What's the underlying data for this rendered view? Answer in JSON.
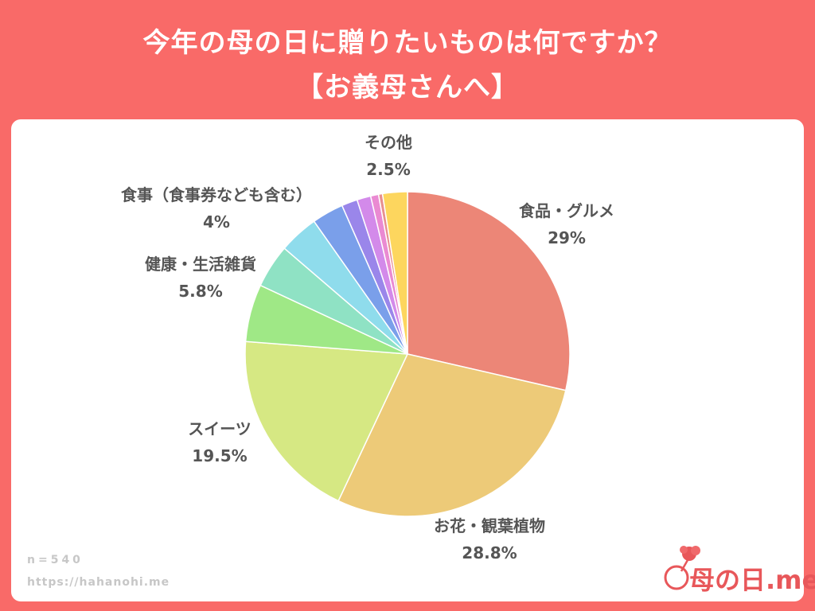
{
  "header": {
    "title_line1": "今年の母の日に贈りたいものは何ですか？",
    "title_line2": "【お義母さんへ】"
  },
  "colors": {
    "background": "#f96a68",
    "panel": "#ffffff",
    "label_text": "#555555"
  },
  "chart_data": {
    "type": "pie",
    "title": "今年の母の日に贈りたいものは何ですか？【お義母さんへ】",
    "start": "12 o'clock, clockwise",
    "slices": [
      {
        "label": "食品・グルメ",
        "value": 29,
        "value_text": "29%",
        "color": "#ec8677"
      },
      {
        "label": "お花・観葉植物",
        "value": 28.8,
        "value_text": "28.8%",
        "color": "#edca78"
      },
      {
        "label": "スイーツ",
        "value": 19.5,
        "value_text": "19.5%",
        "color": "#d6e883"
      },
      {
        "label": "健康・生活雑貨",
        "value": 5.8,
        "value_text": "5.8%",
        "color": "#9fe886"
      },
      {
        "label": "",
        "value": 4.4,
        "value_text": "",
        "color": "#8fe2c4"
      },
      {
        "label": "食事（食事券なども含む）",
        "value": 4,
        "value_text": "4%",
        "color": "#8fdcec"
      },
      {
        "label": "",
        "value": 3.2,
        "value_text": "",
        "color": "#7a9fea"
      },
      {
        "label": "",
        "value": 1.6,
        "value_text": "",
        "color": "#9a86ea"
      },
      {
        "label": "",
        "value": 1.4,
        "value_text": "",
        "color": "#d38aea"
      },
      {
        "label": "",
        "value": 0.8,
        "value_text": "",
        "color": "#ea8ad2"
      },
      {
        "label": "",
        "value": 0.4,
        "value_text": "",
        "color": "#e89090"
      },
      {
        "label": "その他",
        "value": 2.5,
        "value_text": "2.5%",
        "color": "#fdd65e"
      }
    ]
  },
  "footer": {
    "sample_size": "n=540",
    "url": "https://hahanohi.me"
  },
  "logo": {
    "text": "母の日.me"
  }
}
